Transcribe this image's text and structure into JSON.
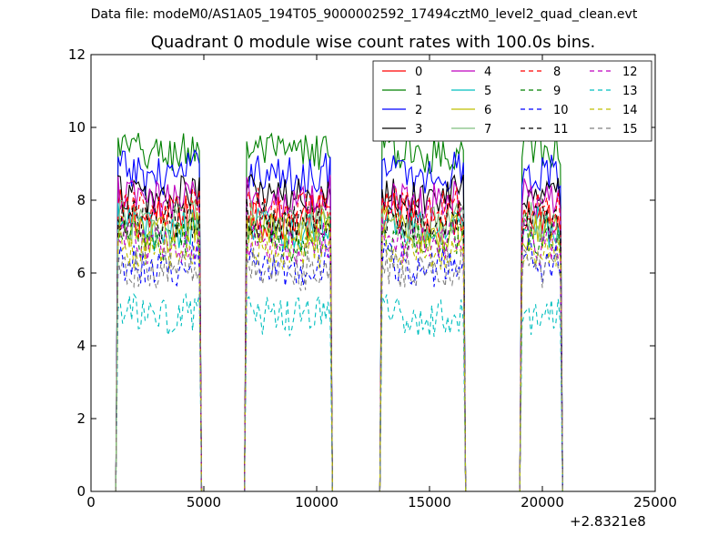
{
  "figure": {
    "suptitle": "Data file: modeM0/AS1A05_194T05_9000002592_17494cztM0_level2_quad_clean.evt",
    "title": "Quadrant 0 module wise count rates with 100.0s bins.",
    "x_offset_label": "+2.8321e8"
  },
  "chart_data": {
    "type": "line",
    "title": "Quadrant 0 module wise count rates with 100.0s bins.",
    "xlabel": "",
    "ylabel": "",
    "x_offset": 283210000,
    "xlim": [
      0,
      25000
    ],
    "ylim": [
      0,
      12
    ],
    "xticks": [
      0,
      5000,
      10000,
      15000,
      20000,
      25000
    ],
    "xtick_labels": [
      "0",
      "5000",
      "10000",
      "15000",
      "20000",
      "25000"
    ],
    "yticks": [
      0,
      2,
      4,
      6,
      8,
      10,
      12
    ],
    "ytick_labels": [
      "0",
      "2",
      "4",
      "6",
      "8",
      "10",
      "12"
    ],
    "grid": false,
    "legend_position": "top-right",
    "segments": [
      {
        "on_start": 1200,
        "off_end": 4900
      },
      {
        "on_start": 6900,
        "off_end": 10700
      },
      {
        "on_start": 12900,
        "off_end": 16600
      },
      {
        "on_start": 19100,
        "off_end": 20900
      }
    ],
    "gap_value": 0,
    "series": [
      {
        "name": "0",
        "color": "#ff0000",
        "style": "solid",
        "mean": 7.7,
        "spread": 0.4
      },
      {
        "name": "1",
        "color": "#008000",
        "style": "solid",
        "mean": 9.5,
        "spread": 0.35
      },
      {
        "name": "2",
        "color": "#0000ff",
        "style": "solid",
        "mean": 8.9,
        "spread": 0.35
      },
      {
        "name": "3",
        "color": "#000000",
        "style": "solid",
        "mean": 8.3,
        "spread": 0.35
      },
      {
        "name": "4",
        "color": "#bf00bf",
        "style": "solid",
        "mean": 8.2,
        "spread": 0.35
      },
      {
        "name": "5",
        "color": "#00bfbf",
        "style": "solid",
        "mean": 7.4,
        "spread": 0.35
      },
      {
        "name": "6",
        "color": "#bfbf00",
        "style": "solid",
        "mean": 7.3,
        "spread": 0.35
      },
      {
        "name": "7",
        "color": "#7fbf7f",
        "style": "solid",
        "mean": 7.5,
        "spread": 0.35
      },
      {
        "name": "8",
        "color": "#ff0000",
        "style": "dashed",
        "mean": 7.9,
        "spread": 0.35
      },
      {
        "name": "9",
        "color": "#008000",
        "style": "dashed",
        "mean": 7.1,
        "spread": 0.35
      },
      {
        "name": "10",
        "color": "#0000ff",
        "style": "dashed",
        "mean": 6.4,
        "spread": 0.35
      },
      {
        "name": "11",
        "color": "#000000",
        "style": "dashed",
        "mean": 7.6,
        "spread": 0.35
      },
      {
        "name": "12",
        "color": "#bf00bf",
        "style": "dashed",
        "mean": 7.0,
        "spread": 0.35
      },
      {
        "name": "13",
        "color": "#00bfbf",
        "style": "dashed",
        "mean": 5.0,
        "spread": 0.35
      },
      {
        "name": "14",
        "color": "#bfbf00",
        "style": "dashed",
        "mean": 6.8,
        "spread": 0.35
      },
      {
        "name": "15",
        "color": "#808080",
        "style": "dashed",
        "mean": 6.3,
        "spread": 0.35
      }
    ]
  }
}
